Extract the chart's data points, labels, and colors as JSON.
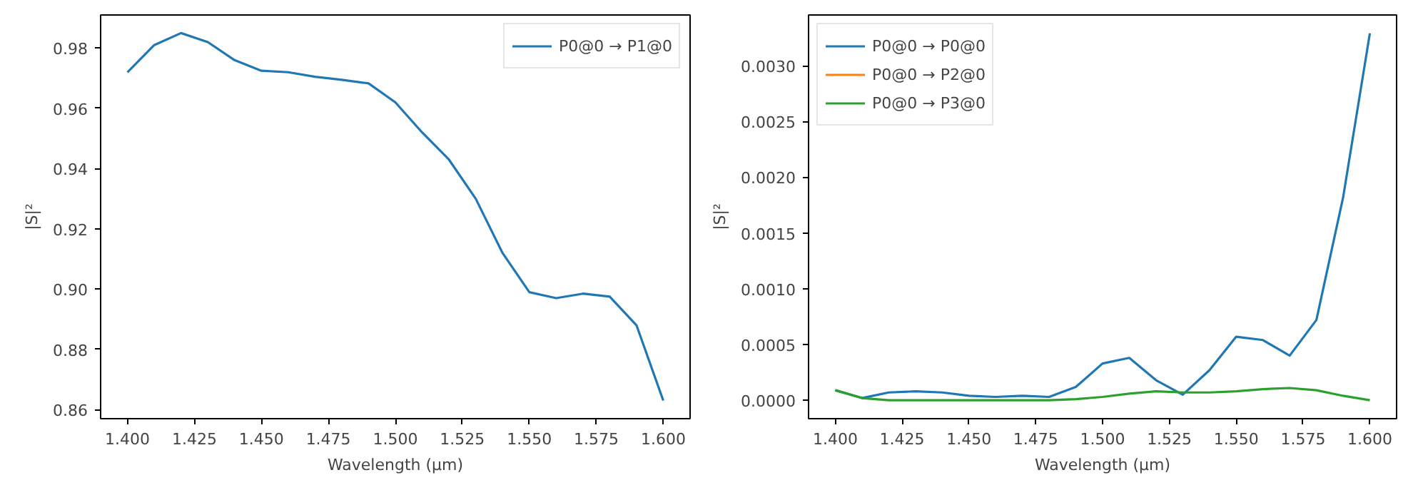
{
  "chart_data": [
    {
      "type": "line",
      "xlabel": "Wavelength (µm)",
      "ylabel": "|S|²",
      "legend": "top right",
      "grid": false,
      "x": [
        1.4,
        1.41,
        1.42,
        1.43,
        1.44,
        1.45,
        1.46,
        1.47,
        1.48,
        1.49,
        1.5,
        1.51,
        1.52,
        1.53,
        1.54,
        1.55,
        1.56,
        1.57,
        1.58,
        1.59,
        1.6
      ],
      "xlim": [
        1.39,
        1.61
      ],
      "xticks": [
        {
          "value": 1.4,
          "label": "1.400"
        },
        {
          "value": 1.425,
          "label": "1.425"
        },
        {
          "value": 1.45,
          "label": "1.450"
        },
        {
          "value": 1.475,
          "label": "1.475"
        },
        {
          "value": 1.5,
          "label": "1.500"
        },
        {
          "value": 1.525,
          "label": "1.525"
        },
        {
          "value": 1.55,
          "label": "1.550"
        },
        {
          "value": 1.575,
          "label": "1.575"
        },
        {
          "value": 1.6,
          "label": "1.600"
        }
      ],
      "ylim": [
        0.857,
        0.991
      ],
      "yticks": [
        0.86,
        0.88,
        {
          "value": 0.9,
          "label": "0.90"
        },
        0.92,
        0.94,
        0.96,
        0.98
      ],
      "series": [
        {
          "name": "P0@0 → P1@0",
          "color": "#1f77b4",
          "values": [
            0.972,
            0.981,
            0.985,
            0.982,
            0.976,
            0.9725,
            0.972,
            0.9705,
            0.9695,
            0.9683,
            0.962,
            0.952,
            0.943,
            0.93,
            0.912,
            0.899,
            0.897,
            0.8985,
            0.8975,
            0.888,
            0.863
          ]
        }
      ]
    },
    {
      "type": "line",
      "xlabel": "Wavelength (µm)",
      "ylabel": "|S|²",
      "legend": "top left",
      "grid": false,
      "x": [
        1.4,
        1.41,
        1.42,
        1.43,
        1.44,
        1.45,
        1.46,
        1.47,
        1.48,
        1.49,
        1.5,
        1.51,
        1.52,
        1.53,
        1.54,
        1.55,
        1.56,
        1.57,
        1.58,
        1.59,
        1.6
      ],
      "xlim": [
        1.39,
        1.61
      ],
      "xticks": [
        {
          "value": 1.4,
          "label": "1.400"
        },
        {
          "value": 1.425,
          "label": "1.425"
        },
        {
          "value": 1.45,
          "label": "1.450"
        },
        {
          "value": 1.475,
          "label": "1.475"
        },
        {
          "value": 1.5,
          "label": "1.500"
        },
        {
          "value": 1.525,
          "label": "1.525"
        },
        {
          "value": 1.55,
          "label": "1.550"
        },
        {
          "value": 1.575,
          "label": "1.575"
        },
        {
          "value": 1.6,
          "label": "1.600"
        }
      ],
      "ylim": [
        -0.000165,
        0.003455
      ],
      "yticks": [
        {
          "value": 0,
          "label": "0.0000"
        },
        {
          "value": 0.0005,
          "label": "0.0005"
        },
        {
          "value": 0.001,
          "label": "0.0010"
        },
        {
          "value": 0.0015,
          "label": "0.0015"
        },
        {
          "value": 0.002,
          "label": "0.0020"
        },
        {
          "value": 0.0025,
          "label": "0.0025"
        },
        {
          "value": 0.003,
          "label": "0.0030"
        }
      ],
      "series": [
        {
          "name": "P0@0 → P0@0",
          "color": "#1f77b4",
          "values": [
            9e-05,
            2e-05,
            7e-05,
            8e-05,
            7e-05,
            4e-05,
            3e-05,
            4e-05,
            3e-05,
            0.00012,
            0.00033,
            0.00038,
            0.00018,
            5e-05,
            0.00027,
            0.00057,
            0.00054,
            0.0004,
            0.00072,
            0.00182,
            0.00329
          ]
        },
        {
          "name": "P0@0 → P2@0",
          "color": "#ff7f0e",
          "values": [
            null,
            null,
            null,
            null,
            null,
            null,
            null,
            null,
            null,
            null,
            null,
            null,
            null,
            null,
            null,
            null,
            null,
            null,
            null,
            null,
            null
          ]
        },
        {
          "name": "P0@0 → P3@0",
          "color": "#2ca02c",
          "values": [
            9e-05,
            2e-05,
            0.0,
            0.0,
            0.0,
            0.0,
            0.0,
            0.0,
            0.0,
            1e-05,
            3e-05,
            6e-05,
            8e-05,
            7e-05,
            7e-05,
            8e-05,
            0.0001,
            0.00011,
            9e-05,
            4e-05,
            0.0
          ]
        }
      ]
    }
  ]
}
